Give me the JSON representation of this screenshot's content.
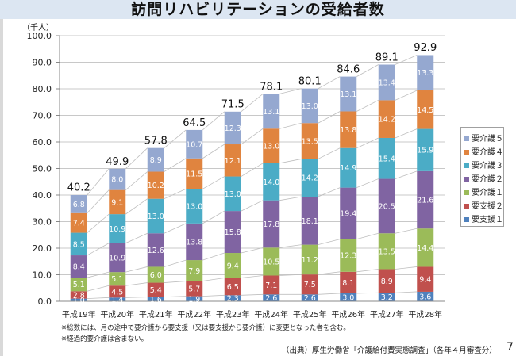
{
  "page": {
    "title": "訪問リハビリテーションの受給者数",
    "unit_label": "（千人）",
    "notes": [
      "※総数には、月の途中で要介護から要支援（又は要支援から要介護）に変更となった者を含む。",
      "※経過的要介護は含まない。"
    ],
    "source": "（出典）厚生労働省「介護給付費実態調査」（各年４月審査分）",
    "page_number": "7"
  },
  "chart_data": {
    "type": "bar",
    "stacked": true,
    "title": "訪問リハビリテーションの受給者数",
    "xlabel": "",
    "ylabel": "（千人）",
    "ylim": [
      0,
      100
    ],
    "yticks": [
      "0.0",
      "10.0",
      "20.0",
      "30.0",
      "40.0",
      "50.0",
      "60.0",
      "70.0",
      "80.0",
      "90.0",
      "100.0"
    ],
    "grid": true,
    "legend_position": "right",
    "categories": [
      "平成19年",
      "平成20年",
      "平成21年",
      "平成22年",
      "平成23年",
      "平成24年",
      "平成25年",
      "平成26年",
      "平成27年",
      "平成28年"
    ],
    "series": [
      {
        "name": "要支援１",
        "color": "#4f81bd",
        "values": [
          1.0,
          1.4,
          1.6,
          1.9,
          2.3,
          2.6,
          2.6,
          3.0,
          3.2,
          3.6
        ]
      },
      {
        "name": "要支援２",
        "color": "#c0504d",
        "values": [
          2.8,
          4.5,
          5.4,
          5.7,
          6.5,
          7.1,
          7.5,
          8.1,
          8.9,
          9.4
        ]
      },
      {
        "name": "要介護１",
        "color": "#9bbb59",
        "values": [
          5.1,
          5.1,
          6.0,
          7.9,
          9.4,
          10.5,
          11.2,
          12.3,
          13.5,
          14.4
        ]
      },
      {
        "name": "要介護２",
        "color": "#8064a2",
        "values": [
          8.4,
          10.9,
          12.6,
          13.8,
          15.8,
          17.8,
          18.1,
          19.4,
          20.5,
          21.6
        ]
      },
      {
        "name": "要介護３",
        "color": "#4bacc6",
        "values": [
          8.5,
          10.9,
          13.0,
          13.0,
          13.0,
          14.0,
          14.2,
          14.9,
          15.4,
          15.9
        ]
      },
      {
        "name": "要介護４",
        "color": "#e0843f",
        "values": [
          7.4,
          9.1,
          10.2,
          11.5,
          12.1,
          13.0,
          13.5,
          13.8,
          14.2,
          14.5
        ]
      },
      {
        "name": "要介護５",
        "color": "#95a8d0",
        "values": [
          6.8,
          8.0,
          8.9,
          10.7,
          12.3,
          13.1,
          13.0,
          13.1,
          13.4,
          13.3
        ]
      }
    ],
    "totals": [
      40.2,
      49.9,
      57.8,
      64.5,
      71.5,
      78.1,
      80.1,
      84.6,
      89.1,
      92.9
    ],
    "legend_order": [
      "要介護５",
      "要介護４",
      "要介護３",
      "要介護２",
      "要介護１",
      "要支援２",
      "要支援１"
    ]
  }
}
